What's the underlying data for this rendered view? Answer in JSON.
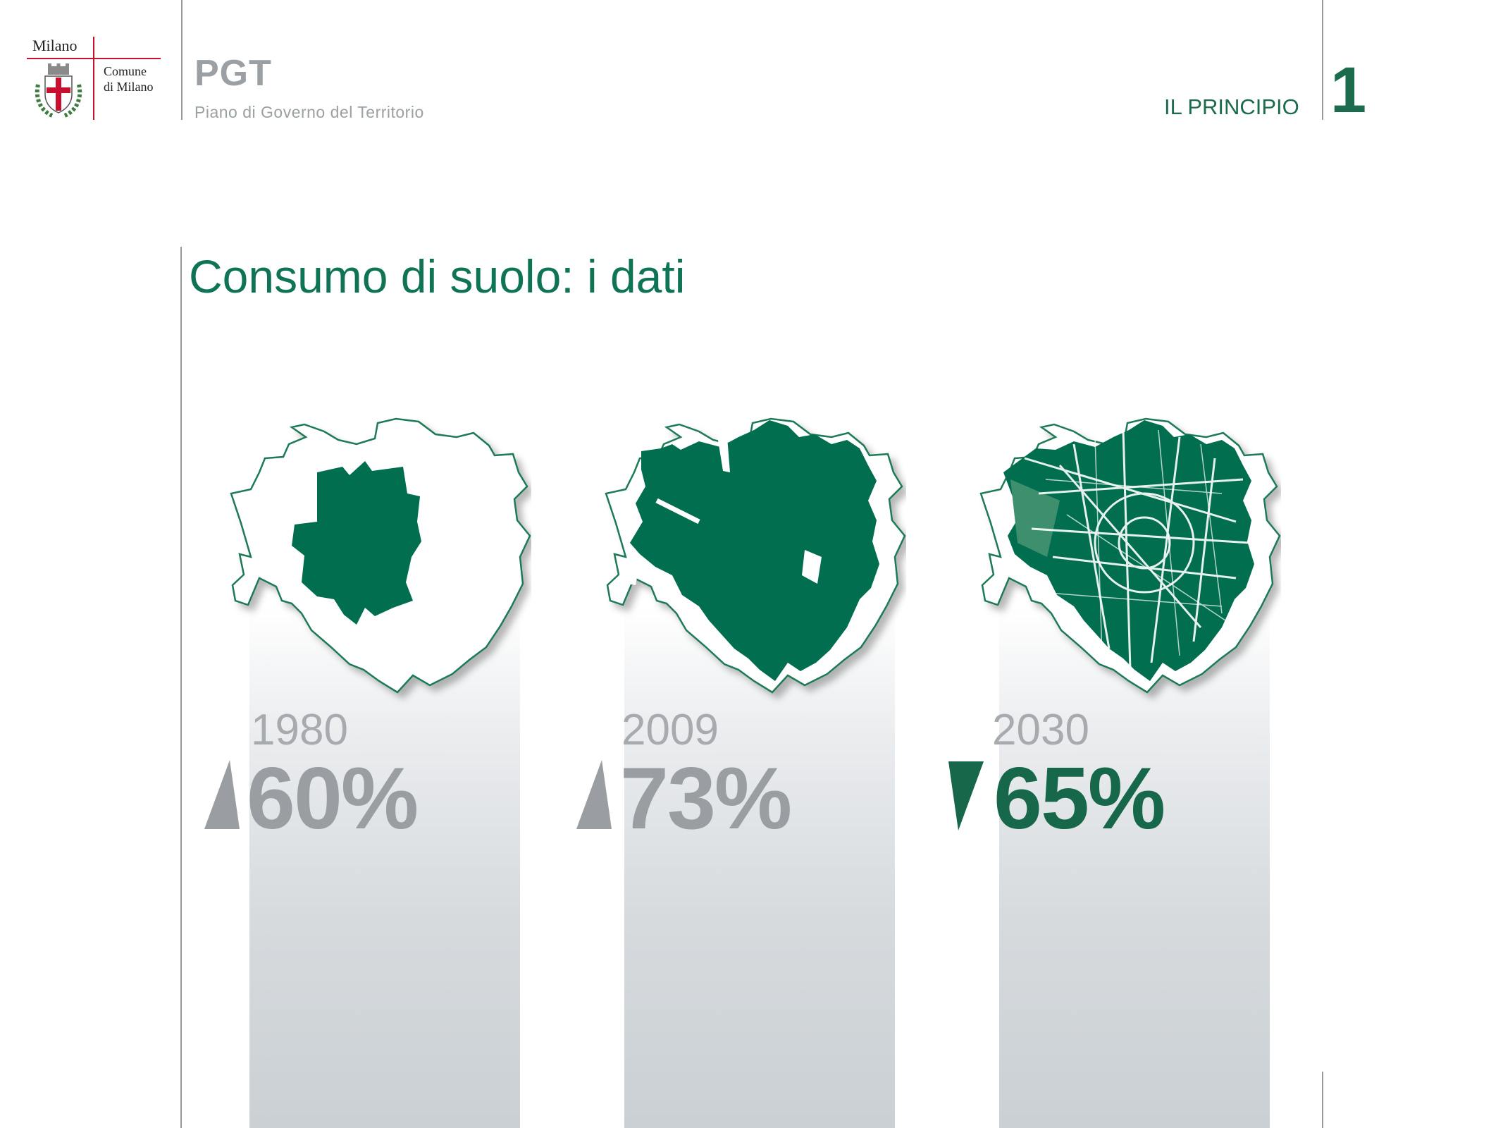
{
  "header": {
    "logo": {
      "city": "Milano",
      "comune_line1": "Comune",
      "comune_line2": "di Milano"
    },
    "app_title": "PGT",
    "app_subtitle": "Piano di Governo del Territorio",
    "section_label": "IL PRINCIPIO",
    "section_number": "1"
  },
  "page": {
    "title": "Consumo di suolo: i dati"
  },
  "panels": [
    {
      "year": "1980",
      "percent": "60%",
      "trend": "up",
      "trend_icon": "triangle-up-icon",
      "color": "#9a9ea2"
    },
    {
      "year": "2009",
      "percent": "73%",
      "trend": "up",
      "trend_icon": "triangle-up-icon",
      "color": "#9a9ea2"
    },
    {
      "year": "2030",
      "percent": "65%",
      "trend": "down",
      "trend_icon": "triangle-down-icon",
      "color": "#17684a"
    }
  ],
  "colors": {
    "accent_green": "#0f7355",
    "map_green": "#006e4f",
    "muted_gray": "#9a9ea2"
  }
}
